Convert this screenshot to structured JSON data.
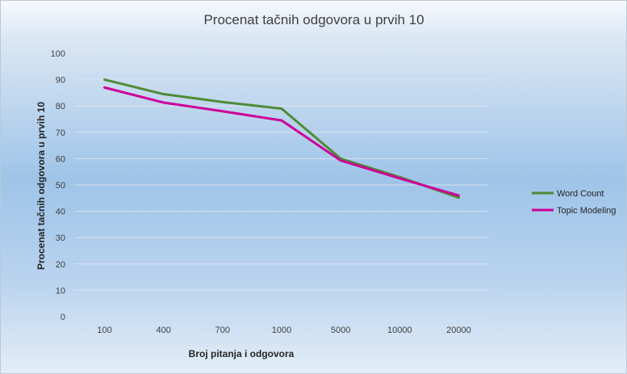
{
  "chart_data": {
    "type": "line",
    "title": "Procenat tačnih odgovora u prvih 10",
    "xlabel": "Broj pitanja  i odgovora",
    "ylabel": "Procenat  tačnih odgovora  u  prvih 10",
    "categories": [
      "100",
      "400",
      "700",
      "1000",
      "5000",
      "10000",
      "20000"
    ],
    "ylim": [
      0,
      100
    ],
    "yticks": [
      0,
      10,
      20,
      30,
      40,
      50,
      60,
      70,
      80,
      90,
      100
    ],
    "grid": true,
    "legend_position": "right",
    "series": [
      {
        "name": "Word Count",
        "color": "#4f8a35",
        "values": [
          90,
          84.5,
          81.5,
          79,
          60,
          53,
          45.2
        ]
      },
      {
        "name": "Topic Modeling",
        "color": "#cc0099",
        "values": [
          87,
          81.3,
          78,
          74.5,
          59.3,
          52.5,
          46
        ]
      }
    ]
  }
}
